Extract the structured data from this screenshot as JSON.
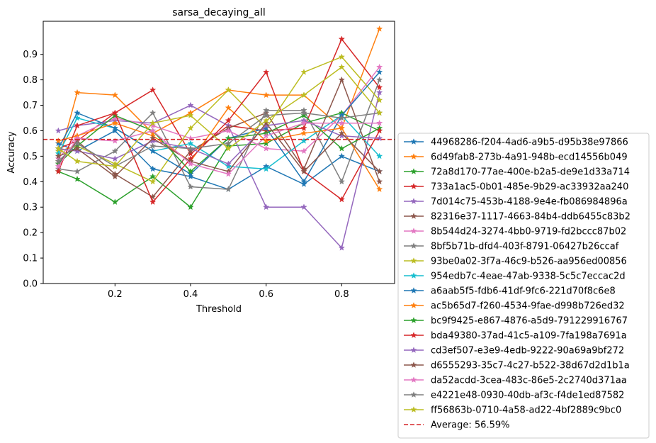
{
  "chart_data": {
    "type": "line",
    "title": "sarsa_decaying_all",
    "xlabel": "Threshold",
    "ylabel": "Accuracy",
    "xlim": [
      0.01,
      0.94
    ],
    "ylim": [
      0.0,
      1.03
    ],
    "x_ticks": [
      0.2,
      0.4,
      0.6,
      0.8
    ],
    "x_tick_labels": [
      "0.2",
      "0.4",
      "0.6",
      "0.8"
    ],
    "y_ticks": [
      0.0,
      0.1,
      0.2,
      0.3,
      0.4,
      0.5,
      0.6,
      0.7,
      0.8,
      0.9
    ],
    "y_tick_labels": [
      "0.0",
      "0.1",
      "0.2",
      "0.3",
      "0.4",
      "0.5",
      "0.6",
      "0.7",
      "0.8",
      "0.9"
    ],
    "grid": false,
    "legend_position": "outside-right",
    "x": [
      0.05,
      0.1,
      0.2,
      0.3,
      0.4,
      0.5,
      0.6,
      0.7,
      0.8,
      0.9
    ],
    "series": [
      {
        "name": "44968286-f204-4ad6-a9b5-d95b38e97866",
        "color": "#1f77b4",
        "values": [
          0.55,
          0.52,
          0.6,
          0.45,
          0.42,
          0.37,
          0.46,
          0.39,
          0.5,
          0.44
        ]
      },
      {
        "name": "6d49fab8-273b-4a91-948b-ecd14556b049",
        "color": "#ff7f0e",
        "values": [
          0.48,
          0.75,
          0.74,
          0.59,
          0.67,
          0.76,
          0.74,
          0.74,
          0.61,
          1.0
        ]
      },
      {
        "name": "72a8d170-77ae-400e-b2a5-de9e1d33a714",
        "color": "#2ca02c",
        "values": [
          0.44,
          0.41,
          0.32,
          0.42,
          0.3,
          0.54,
          0.55,
          0.63,
          0.67,
          0.6
        ]
      },
      {
        "name": "733a1ac5-0b01-485e-9b29-ac33932aa240",
        "color": "#d62728",
        "values": [
          0.53,
          0.56,
          0.67,
          0.76,
          0.51,
          0.62,
          0.6,
          0.61,
          0.96,
          0.77
        ]
      },
      {
        "name": "7d014c75-453b-4188-9e4e-fb086984896a",
        "color": "#9467bd",
        "values": [
          0.6,
          0.62,
          0.64,
          0.63,
          0.7,
          0.62,
          0.3,
          0.3,
          0.14,
          0.75
        ]
      },
      {
        "name": "82316e37-1117-4663-84b4-ddb6455c83b2",
        "color": "#8c564b",
        "values": [
          0.47,
          0.56,
          0.43,
          0.34,
          0.52,
          0.61,
          0.67,
          0.45,
          0.8,
          0.4
        ]
      },
      {
        "name": "8b544d24-3274-4bb0-9719-fd2bccc87b02",
        "color": "#e377c2",
        "values": [
          0.49,
          0.58,
          0.65,
          0.62,
          0.57,
          0.6,
          0.53,
          0.52,
          0.66,
          0.85
        ]
      },
      {
        "name": "8bf5b71b-dfd4-403f-8791-06427b26ccaf",
        "color": "#7f7f7f",
        "values": [
          0.45,
          0.44,
          0.52,
          0.67,
          0.38,
          0.37,
          0.68,
          0.68,
          0.4,
          0.8
        ]
      },
      {
        "name": "93be0a02-3f7a-46c9-b526-aa956ed00856",
        "color": "#bcbd22",
        "values": [
          0.52,
          0.54,
          0.47,
          0.4,
          0.61,
          0.76,
          0.61,
          0.83,
          0.89,
          0.72
        ]
      },
      {
        "name": "954edb7c-4eae-47ab-9338-5c5c7eccac2d",
        "color": "#17becf",
        "values": [
          0.51,
          0.65,
          0.61,
          0.52,
          0.55,
          0.46,
          0.45,
          0.56,
          0.66,
          0.5
        ]
      },
      {
        "name": "a6aab5f5-fdb6-41df-9fc6-221d70f8c6e8",
        "color": "#1f77b4",
        "values": [
          0.53,
          0.67,
          0.61,
          0.52,
          0.43,
          0.57,
          0.61,
          0.4,
          0.66,
          0.83
        ]
      },
      {
        "name": "ac5b65d7-f260-4534-9fae-d998b726ed32",
        "color": "#ff7f0e",
        "values": [
          0.56,
          0.58,
          0.63,
          0.58,
          0.48,
          0.69,
          0.56,
          0.59,
          0.61,
          0.37
        ]
      },
      {
        "name": "bc9f9425-e867-4876-a5d9-791229916767",
        "color": "#2ca02c",
        "values": [
          0.47,
          0.54,
          0.66,
          0.6,
          0.44,
          0.57,
          0.59,
          0.66,
          0.53,
          0.61
        ]
      },
      {
        "name": "bda49380-37ad-41c5-a109-7fa198a7691a",
        "color": "#d62728",
        "values": [
          0.44,
          0.62,
          0.67,
          0.32,
          0.49,
          0.64,
          0.83,
          0.44,
          0.33,
          0.6
        ]
      },
      {
        "name": "cd3ef507-e3e9-4edb-9222-90a69a9bf272",
        "color": "#9467bd",
        "values": [
          0.53,
          0.52,
          0.49,
          0.56,
          0.53,
          0.47,
          0.62,
          0.64,
          0.58,
          0.57
        ]
      },
      {
        "name": "d6555293-35c7-4c27-b522-38d67d2d1b1a",
        "color": "#8c564b",
        "values": [
          0.5,
          0.53,
          0.42,
          0.57,
          0.48,
          0.44,
          0.63,
          0.44,
          0.59,
          0.44
        ]
      },
      {
        "name": "da52acdd-3cea-483c-86e5-2c2740d371aa",
        "color": "#e377c2",
        "values": [
          0.46,
          0.57,
          0.56,
          0.6,
          0.47,
          0.43,
          0.58,
          0.63,
          0.63,
          0.63
        ]
      },
      {
        "name": "e4221e48-0930-40db-af3c-f4de1ed87582",
        "color": "#7f7f7f",
        "values": [
          0.48,
          0.55,
          0.46,
          0.54,
          0.53,
          0.55,
          0.66,
          0.67,
          0.65,
          0.67
        ]
      },
      {
        "name": "ff56863b-0710-4a58-ad22-4bf2889c9bc0",
        "color": "#bcbd22",
        "values": [
          0.53,
          0.48,
          0.46,
          0.63,
          0.66,
          0.53,
          0.64,
          0.74,
          0.85,
          0.67
        ]
      }
    ],
    "average": {
      "label": "Average: 56.59%",
      "value": 0.5659,
      "color": "#d62728"
    }
  }
}
